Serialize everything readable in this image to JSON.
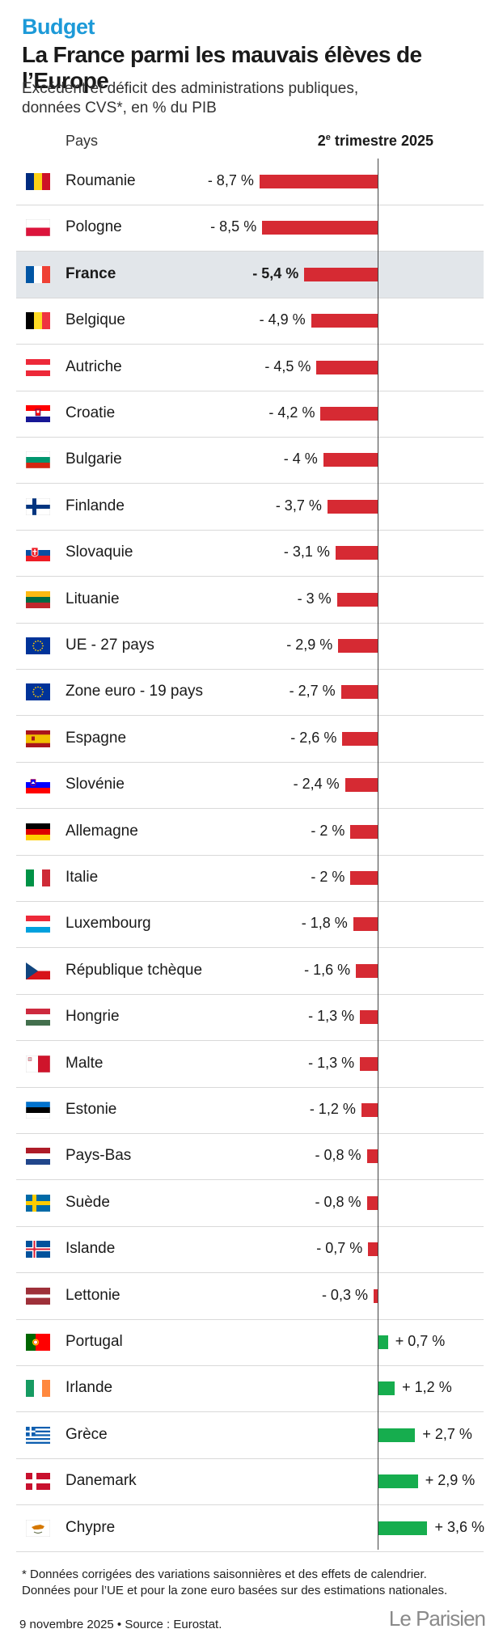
{
  "header": {
    "kicker": "Budget",
    "title": "La France parmi les mauvais élèves de l’Europe",
    "subtitle": "Excédent et déficit des administrations publiques, données CVS*, en % du PIB"
  },
  "columns": {
    "country": "Pays",
    "period_prefix": "2",
    "period_sup": "e",
    "period_suffix": " trimestre 2025"
  },
  "colors": {
    "negative": "#d62a33",
    "positive": "#16ad4e",
    "highlight": "#e2e6ea",
    "kicker": "#1d9ad8"
  },
  "chart_data": {
    "type": "bar",
    "orientation": "horizontal",
    "categories": [
      "Roumanie",
      "Pologne",
      "France",
      "Belgique",
      "Autriche",
      "Croatie",
      "Bulgarie",
      "Finlande",
      "Slovaquie",
      "Lituanie",
      "UE - 27 pays",
      "Zone euro - 19 pays",
      "Espagne",
      "Slovénie",
      "Allemagne",
      "Italie",
      "Luxembourg",
      "République tchèque",
      "Hongrie",
      "Malte",
      "Estonie",
      "Pays-Bas",
      "Suède",
      "Islande",
      "Lettonie",
      "Portugal",
      "Irlande",
      "Grèce",
      "Danemark",
      "Chypre"
    ],
    "values": [
      -8.7,
      -8.5,
      -5.4,
      -4.9,
      -4.5,
      -4.2,
      -4,
      -3.7,
      -3.1,
      -3,
      -2.9,
      -2.7,
      -2.6,
      -2.4,
      -2,
      -2,
      -1.8,
      -1.6,
      -1.3,
      -1.3,
      -1.2,
      -0.8,
      -0.8,
      -0.7,
      -0.3,
      0.7,
      1.2,
      2.7,
      2.9,
      3.6
    ],
    "labels": [
      "- 8,7 %",
      "- 8,5 %",
      "- 5,4 %",
      "- 4,9 %",
      "- 4,5 %",
      "- 4,2 %",
      "- 4 %",
      "- 3,7 %",
      "- 3,1 %",
      "- 3 %",
      "- 2,9 %",
      "- 2,7 %",
      "- 2,6 %",
      "- 2,4 %",
      "- 2 %",
      "- 2 %",
      "- 1,8 %",
      "- 1,6 %",
      "- 1,3 %",
      "- 1,3 %",
      "- 1,2 %",
      "- 0,8 %",
      "- 0,8 %",
      "- 0,7 %",
      "- 0,3 %",
      "+ 0,7 %",
      "+ 1,2 %",
      "+ 2,7 %",
      "+ 2,9 %",
      "+ 3,6 %"
    ],
    "flags": [
      "ro",
      "pl",
      "fr",
      "be",
      "at",
      "hr",
      "bg",
      "fi",
      "sk",
      "lt",
      "eu",
      "eu",
      "es",
      "si",
      "de",
      "it",
      "lu",
      "cz",
      "hu",
      "mt",
      "ee",
      "nl",
      "se",
      "is",
      "lv",
      "pt",
      "ie",
      "gr",
      "dk",
      "cy"
    ],
    "highlight": "France",
    "xlim": [
      -8.7,
      3.6
    ]
  },
  "notes": {
    "note1": "* Données corrigées des variations saisonnières et des effets de calendrier.",
    "note2": "Données pour l’UE et pour la zone euro basées sur des estimations nationales."
  },
  "footer": {
    "source": "9 novembre 2025 • Source : Eurostat.",
    "logo": "Le Parisien"
  }
}
